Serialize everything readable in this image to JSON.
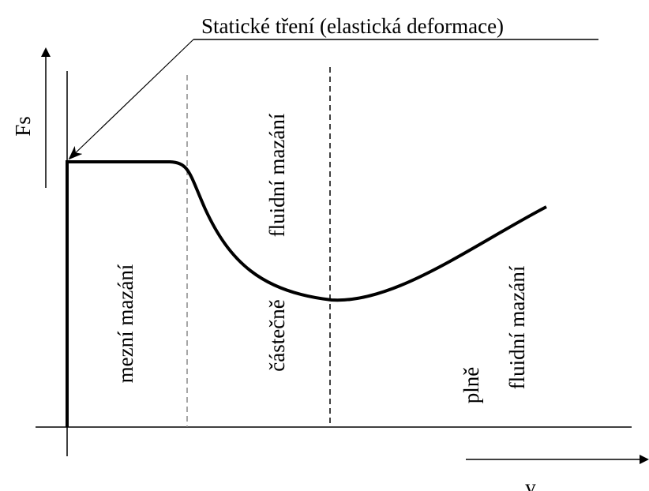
{
  "annotation": "Statické tření (elastická deformace)",
  "axes": {
    "y_label": "Fs",
    "x_label": "v"
  },
  "regions": [
    {
      "lines": [
        "mezní mazání"
      ]
    },
    {
      "lines": [
        "částečně",
        "fluidní mazání"
      ]
    },
    {
      "lines": [
        "plně",
        "fluidní mazání"
      ]
    }
  ]
}
